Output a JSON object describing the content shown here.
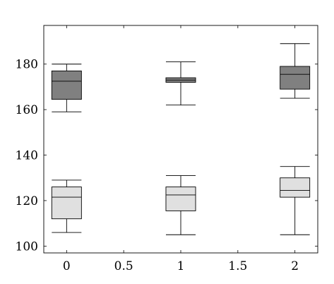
{
  "chart_data": {
    "type": "box",
    "title": "",
    "xlabel": "",
    "ylabel": "",
    "xlim": [
      -0.2,
      2.2
    ],
    "ylim": [
      97,
      197
    ],
    "grid": false,
    "x_ticks": [
      0,
      0.5,
      1,
      1.5,
      2
    ],
    "x_tick_labels": [
      "0",
      "0.5",
      "1",
      "1.5",
      "2"
    ],
    "y_ticks": [
      100,
      120,
      140,
      160,
      180
    ],
    "y_tick_labels": [
      "100",
      "120",
      "140",
      "160",
      "180"
    ],
    "box_half_width": 0.13,
    "series": [
      {
        "color": "#808080",
        "boxes": [
          {
            "x": 0,
            "min": 159,
            "q1": 164.5,
            "median": 172.5,
            "q3": 177,
            "max": 180
          },
          {
            "x": 1,
            "min": 162,
            "q1": 172,
            "median": 173,
            "q3": 174,
            "max": 181
          },
          {
            "x": 2,
            "min": 165,
            "q1": 169,
            "median": 175.5,
            "q3": 179,
            "max": 189
          }
        ]
      },
      {
        "color": "#e0e0e0",
        "boxes": [
          {
            "x": 0,
            "min": 106,
            "q1": 112,
            "median": 121.5,
            "q3": 126,
            "max": 129
          },
          {
            "x": 1,
            "min": 105,
            "q1": 115.5,
            "median": 122.5,
            "q3": 126,
            "max": 131
          },
          {
            "x": 2,
            "min": 105,
            "q1": 121.5,
            "median": 124.5,
            "q3": 130,
            "max": 135
          }
        ]
      }
    ]
  }
}
